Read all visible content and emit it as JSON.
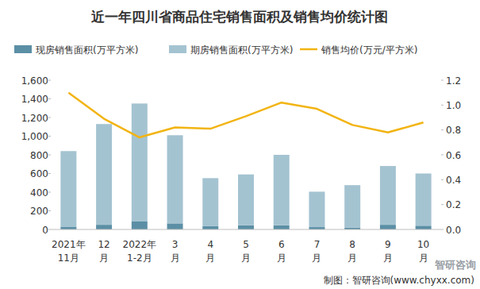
{
  "chart_data": {
    "type": "bar",
    "title": "近一年四川省商品住宅销售面积及销售均价统计图",
    "source": "制图：智研咨询(www.chyxx.com)",
    "watermark": "智研咨询",
    "categories": [
      "2021年\n11月",
      "12\n月",
      "2022年\n1-2月",
      "3\n月",
      "4\n月",
      "5\n月",
      "6\n月",
      "7\n月",
      "8\n月",
      "9\n月",
      "10\n月"
    ],
    "stacked": true,
    "grid": false,
    "legend": "top",
    "series": [
      {
        "name": "现房销售面积(万平方米)",
        "type": "bar",
        "color": "#5b8fa5",
        "values": [
          30,
          50,
          85,
          65,
          35,
          45,
          45,
          25,
          20,
          50,
          40
        ]
      },
      {
        "name": "期房销售面积(万平方米)",
        "type": "bar",
        "color": "#a4c3d1",
        "values": [
          810,
          1080,
          1265,
          945,
          515,
          545,
          755,
          380,
          455,
          630,
          560
        ]
      },
      {
        "name": "销售均价(万元/平方米)",
        "type": "line",
        "color": "#f2b412",
        "axis": "y2",
        "values": [
          1.1,
          0.89,
          0.74,
          0.82,
          0.81,
          0.91,
          1.02,
          0.97,
          0.84,
          0.78,
          0.86
        ]
      }
    ],
    "ylim": [
      0,
      1600
    ],
    "yticks": [
      0,
      200,
      400,
      600,
      800,
      {
        "value": 1000,
        "label": "1,000"
      },
      {
        "value": 1200,
        "label": "1,200"
      },
      {
        "value": 1400,
        "label": "1,400"
      },
      {
        "value": 1600,
        "label": "1,600"
      }
    ],
    "y2lim": [
      0,
      1.2
    ],
    "y2ticks": [
      {
        "value": 0,
        "label": "0.0"
      },
      0.2,
      0.4,
      0.6,
      0.8,
      {
        "value": 1.0,
        "label": "1.0"
      },
      1.2
    ]
  }
}
